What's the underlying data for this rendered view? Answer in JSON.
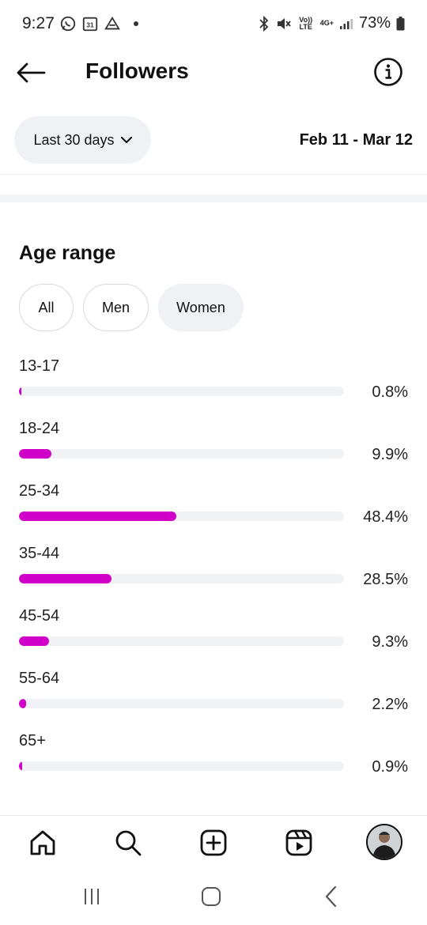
{
  "status_bar": {
    "time": "9:27",
    "battery": "73%",
    "calendar_day": "31",
    "network_label": "4G+",
    "volte_label": "Vo)) LTE"
  },
  "header": {
    "title": "Followers"
  },
  "date_filter": {
    "range_label": "Last 30 days",
    "date_range": "Feb 11 - Mar 12"
  },
  "age_section": {
    "title": "Age range",
    "filters": [
      {
        "label": "All",
        "selected": false
      },
      {
        "label": "Men",
        "selected": false
      },
      {
        "label": "Women",
        "selected": true
      }
    ],
    "rows": [
      {
        "label": "13-17",
        "percent_text": "0.8%",
        "value": 0.8
      },
      {
        "label": "18-24",
        "percent_text": "9.9%",
        "value": 9.9
      },
      {
        "label": "25-34",
        "percent_text": "48.4%",
        "value": 48.4
      },
      {
        "label": "35-44",
        "percent_text": "28.5%",
        "value": 28.5
      },
      {
        "label": "45-54",
        "percent_text": "9.3%",
        "value": 9.3
      },
      {
        "label": "55-64",
        "percent_text": "2.2%",
        "value": 2.2
      },
      {
        "label": "65+",
        "percent_text": "0.9%",
        "value": 0.9
      }
    ],
    "bar_color": "#d100c8",
    "track_color": "#f1f2f5"
  },
  "bottom_nav": {
    "items": [
      "home-icon",
      "search-icon",
      "create-icon",
      "reels-icon",
      "profile-avatar"
    ]
  },
  "system_nav": {
    "items": [
      "recents-icon",
      "home-icon",
      "back-icon"
    ]
  }
}
